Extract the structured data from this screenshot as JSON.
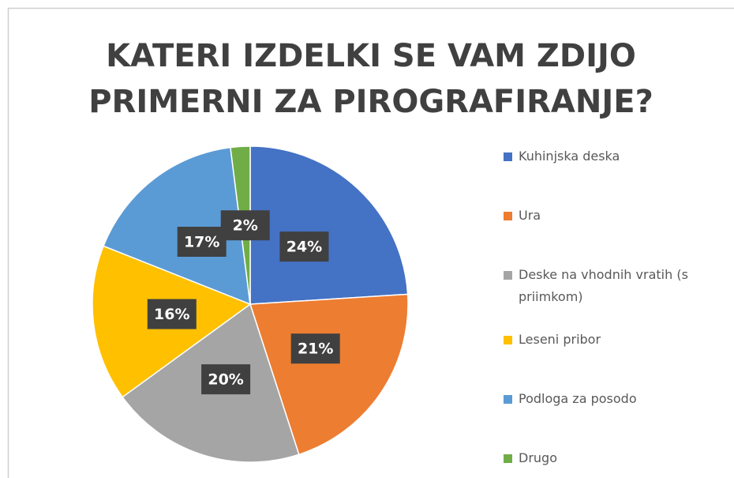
{
  "chart_data": {
    "type": "pie",
    "title": [
      "KATERI IZDELKI SE VAM ZDIJO",
      "PRIMERNI ZA PIROGRAFIRANJE?"
    ],
    "categories": [
      "Kuhinjska deska",
      "Ura",
      "Deske na vhodnih vratih (s priimkom)",
      "Leseni pribor",
      "Podloga za posodo",
      "Drugo"
    ],
    "values": [
      24,
      21,
      20,
      16,
      17,
      2
    ],
    "value_labels": [
      "24%",
      "21%",
      "20%",
      "16%",
      "17%",
      "2%"
    ],
    "colors": [
      "#4472c4",
      "#ed7d31",
      "#a5a5a5",
      "#ffc000",
      "#5b9bd5",
      "#70ad47"
    ],
    "legend": "right"
  }
}
